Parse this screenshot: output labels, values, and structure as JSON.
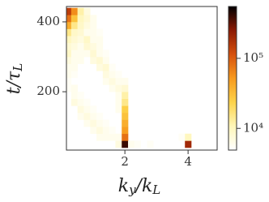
{
  "chart_data": {
    "type": "heatmap",
    "x_label": [
      "k",
      "y",
      "/k",
      "L"
    ],
    "y_label": [
      "t/τ",
      "L"
    ],
    "xbins": [
      0.1,
      0.3,
      0.5,
      0.7,
      0.9,
      1.1,
      1.3,
      1.5,
      1.7,
      1.9,
      2.1,
      2.3,
      2.5,
      2.7,
      2.9,
      3.1,
      3.3,
      3.5,
      3.7,
      3.9,
      4.1,
      4.3,
      4.5,
      4.7,
      4.9
    ],
    "ybins": [
      40,
      60,
      80,
      100,
      120,
      140,
      160,
      180,
      200,
      220,
      240,
      260,
      280,
      300,
      320,
      340,
      360,
      380,
      400,
      420,
      440
    ],
    "values": [
      [
        null,
        null,
        null,
        null,
        null,
        null,
        null,
        null,
        7000,
        400000,
        6000,
        5500,
        null,
        5500,
        null,
        null,
        null,
        null,
        null,
        200000,
        null,
        null,
        null,
        null
      ],
      [
        null,
        null,
        null,
        null,
        null,
        6000,
        6000,
        6000,
        6000,
        80000,
        null,
        null,
        null,
        null,
        null,
        null,
        null,
        null,
        5500,
        10000,
        null,
        null,
        null,
        null
      ],
      [
        null,
        null,
        null,
        null,
        6000,
        7000,
        6000,
        5500,
        null,
        50000,
        null,
        null,
        null,
        null,
        null,
        null,
        null,
        null,
        null,
        null,
        null,
        null,
        null,
        null
      ],
      [
        null,
        null,
        null,
        6000,
        7000,
        6000,
        5500,
        null,
        null,
        40000,
        null,
        null,
        null,
        null,
        null,
        null,
        null,
        null,
        null,
        null,
        null,
        null,
        null,
        null
      ],
      [
        null,
        null,
        6000,
        7000,
        6000,
        5500,
        null,
        null,
        null,
        30000,
        null,
        null,
        null,
        null,
        null,
        null,
        null,
        null,
        null,
        null,
        null,
        null,
        null,
        null
      ],
      [
        null,
        null,
        7000,
        6000,
        5500,
        null,
        null,
        null,
        6000,
        25000,
        null,
        null,
        null,
        null,
        null,
        null,
        null,
        null,
        null,
        null,
        null,
        null,
        null,
        null
      ],
      [
        null,
        7000,
        6000,
        5500,
        null,
        null,
        null,
        null,
        6000,
        15000,
        null,
        null,
        null,
        null,
        null,
        null,
        null,
        null,
        null,
        null,
        null,
        null,
        null,
        null
      ],
      [
        null,
        6000,
        5500,
        null,
        null,
        null,
        null,
        null,
        6000,
        12000,
        null,
        null,
        null,
        null,
        null,
        null,
        null,
        null,
        null,
        null,
        null,
        null,
        null,
        null
      ],
      [
        5500,
        6000,
        null,
        null,
        null,
        null,
        null,
        6000,
        7000,
        8000,
        null,
        null,
        null,
        null,
        null,
        null,
        null,
        null,
        null,
        null,
        null,
        null,
        null,
        null
      ],
      [
        5500,
        null,
        null,
        null,
        null,
        null,
        6000,
        7000,
        6000,
        6000,
        null,
        null,
        null,
        null,
        null,
        null,
        null,
        null,
        null,
        null,
        null,
        null,
        null,
        null
      ],
      [
        6000,
        5500,
        null,
        null,
        null,
        null,
        7000,
        6000,
        5500,
        null,
        null,
        null,
        null,
        null,
        null,
        null,
        null,
        null,
        null,
        null,
        null,
        null,
        null,
        null
      ],
      [
        6000,
        6000,
        null,
        null,
        null,
        7000,
        8000,
        5500,
        null,
        null,
        null,
        null,
        null,
        null,
        null,
        null,
        null,
        null,
        null,
        null,
        null,
        null,
        null,
        null
      ],
      [
        7000,
        6000,
        6000,
        null,
        7000,
        8000,
        6000,
        null,
        null,
        null,
        null,
        null,
        null,
        null,
        null,
        null,
        null,
        null,
        null,
        null,
        null,
        null,
        null,
        null
      ],
      [
        9000,
        6000,
        6000,
        6000,
        8000,
        6000,
        5500,
        null,
        null,
        null,
        null,
        null,
        null,
        null,
        null,
        null,
        null,
        null,
        null,
        null,
        null,
        null,
        null,
        null
      ],
      [
        8000,
        7000,
        6000,
        8000,
        7000,
        6000,
        null,
        null,
        null,
        null,
        null,
        null,
        null,
        null,
        null,
        null,
        null,
        null,
        null,
        null,
        null,
        null,
        null,
        null
      ],
      [
        10000,
        8000,
        7000,
        9000,
        6000,
        6000,
        null,
        null,
        null,
        null,
        null,
        null,
        null,
        null,
        null,
        null,
        null,
        null,
        null,
        null,
        null,
        null,
        null,
        null
      ],
      [
        15000,
        9000,
        8000,
        6000,
        6000,
        5500,
        null,
        null,
        null,
        null,
        null,
        null,
        null,
        null,
        null,
        null,
        null,
        null,
        null,
        null,
        null,
        null,
        null,
        null
      ],
      [
        40000,
        15000,
        9000,
        7000,
        6000,
        null,
        null,
        null,
        null,
        null,
        null,
        null,
        null,
        null,
        null,
        null,
        null,
        null,
        null,
        null,
        null,
        null,
        null,
        null
      ],
      [
        80000,
        30000,
        10000,
        8000,
        6000,
        null,
        null,
        null,
        null,
        null,
        null,
        null,
        null,
        null,
        null,
        null,
        null,
        null,
        null,
        null,
        null,
        null,
        null,
        null
      ],
      [
        150000,
        60000,
        12000,
        7000,
        null,
        null,
        null,
        null,
        null,
        null,
        null,
        null,
        null,
        null,
        null,
        null,
        null,
        null,
        null,
        null,
        null,
        null,
        null,
        null
      ]
    ],
    "xlim": [
      0.15,
      4.92
    ],
    "xticks": [
      2,
      4
    ],
    "ylim": [
      33,
      444
    ],
    "yticks": [
      200,
      400
    ],
    "colorbar_lim": [
      4900,
      550000
    ],
    "colorbar_log": true,
    "colorbar_ticks": [
      {
        "value": 10000,
        "label": "10⁴"
      },
      {
        "value": 100000,
        "label": "10⁵"
      }
    ],
    "colormap": [
      "#ffffff",
      "#fff6b8",
      "#fdd34a",
      "#f79a1e",
      "#d6500d",
      "#8c1a04",
      "#000000"
    ]
  }
}
